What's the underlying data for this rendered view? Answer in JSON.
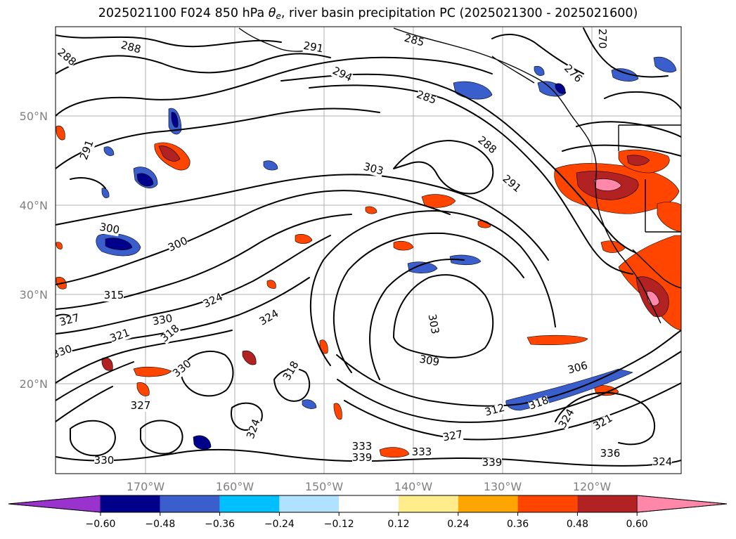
{
  "title": {
    "prefix": "2025021100 F024 850 hPa ",
    "theta": "θ",
    "theta_sub": "e",
    "suffix": ", river basin precipitation PC (2025021300 - 2025021600)"
  },
  "map": {
    "lat_labels": [
      "50°N",
      "40°N",
      "30°N",
      "20°N"
    ],
    "lon_labels": [
      "170°W",
      "160°W",
      "150°W",
      "140°W",
      "130°W",
      "120°W"
    ],
    "contour_labels": [
      "288",
      "288",
      "291",
      "291",
      "294",
      "285",
      "285",
      "288",
      "291",
      "270",
      "276",
      "303",
      "300",
      "300",
      "315",
      "327",
      "330",
      "330",
      "321",
      "318",
      "324",
      "324",
      "303",
      "309",
      "306",
      "312",
      "318",
      "327",
      "327",
      "330",
      "333",
      "333",
      "339",
      "339",
      "336",
      "324",
      "321",
      "324",
      "330",
      "324",
      "318"
    ],
    "colors": {
      "contour": "#000000",
      "grid": "#b0b0b0",
      "coast": "#000000",
      "tick_label": "#808080"
    }
  },
  "colorbar": {
    "ticks": [
      "−0.60",
      "−0.48",
      "−0.36",
      "−0.24",
      "−0.12",
      "0.12",
      "0.24",
      "0.36",
      "0.48",
      "0.60"
    ],
    "colors": [
      "#9a32cd",
      "#00008b",
      "#3a5fcd",
      "#00bfff",
      "#b0e2ff",
      "#ffffff",
      "#ffec8b",
      "#ffa500",
      "#ff4500",
      "#b22222",
      "#ff88aa"
    ]
  }
}
